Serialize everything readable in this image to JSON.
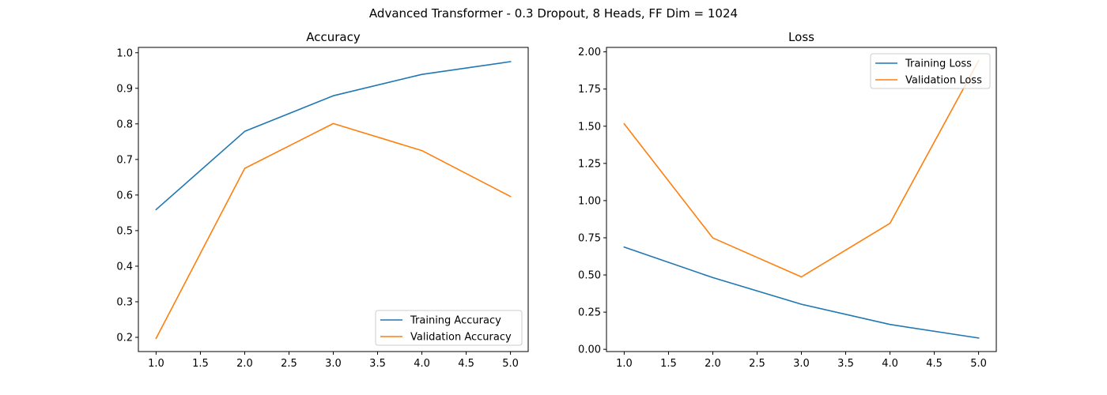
{
  "figure": {
    "title": "Advanced Transformer - 0.3 Dropout, 8 Heads, FF Dim = 1024"
  },
  "chart_data": [
    {
      "type": "line",
      "title": "Accuracy",
      "xlabel": "",
      "ylabel": "",
      "x": [
        1,
        2,
        3,
        4,
        5
      ],
      "xlim": [
        0.8,
        5.2
      ],
      "ylim": [
        0.16,
        1.015
      ],
      "xticks": [
        1.0,
        1.5,
        2.0,
        2.5,
        3.0,
        3.5,
        4.0,
        4.5,
        5.0
      ],
      "yticks": [
        0.2,
        0.3,
        0.4,
        0.5,
        0.6,
        0.7,
        0.8,
        0.9,
        1.0
      ],
      "x_tick_labels": [
        "1.0",
        "1.5",
        "2.0",
        "2.5",
        "3.0",
        "3.5",
        "4.0",
        "4.5",
        "5.0"
      ],
      "y_tick_labels": [
        "0.2",
        "0.3",
        "0.4",
        "0.5",
        "0.6",
        "0.7",
        "0.8",
        "0.9",
        "1.0"
      ],
      "grid": false,
      "legend_position": "lower-right",
      "series": [
        {
          "name": "Training Accuracy",
          "color": "#1f77b4",
          "values": [
            0.559,
            0.779,
            0.879,
            0.939,
            0.975
          ]
        },
        {
          "name": "Validation Accuracy",
          "color": "#ff7f0e",
          "values": [
            0.197,
            0.675,
            0.801,
            0.725,
            0.596
          ]
        }
      ]
    },
    {
      "type": "line",
      "title": "Loss",
      "xlabel": "",
      "ylabel": "",
      "x": [
        1,
        2,
        3,
        4,
        5
      ],
      "xlim": [
        0.8,
        5.2
      ],
      "ylim": [
        -0.015,
        2.03
      ],
      "xticks": [
        1.0,
        1.5,
        2.0,
        2.5,
        3.0,
        3.5,
        4.0,
        4.5,
        5.0
      ],
      "yticks": [
        0.0,
        0.25,
        0.5,
        0.75,
        1.0,
        1.25,
        1.5,
        1.75,
        2.0
      ],
      "x_tick_labels": [
        "1.0",
        "1.5",
        "2.0",
        "2.5",
        "3.0",
        "3.5",
        "4.0",
        "4.5",
        "5.0"
      ],
      "y_tick_labels": [
        "0.00",
        "0.25",
        "0.50",
        "0.75",
        "1.00",
        "1.25",
        "1.50",
        "1.75",
        "2.00"
      ],
      "grid": false,
      "legend_position": "upper-right",
      "series": [
        {
          "name": "Training Loss",
          "color": "#1f77b4",
          "values": [
            0.687,
            0.482,
            0.303,
            0.167,
            0.076
          ]
        },
        {
          "name": "Validation Loss",
          "color": "#ff7f0e",
          "values": [
            1.516,
            0.749,
            0.487,
            0.847,
            1.941
          ]
        }
      ]
    }
  ]
}
